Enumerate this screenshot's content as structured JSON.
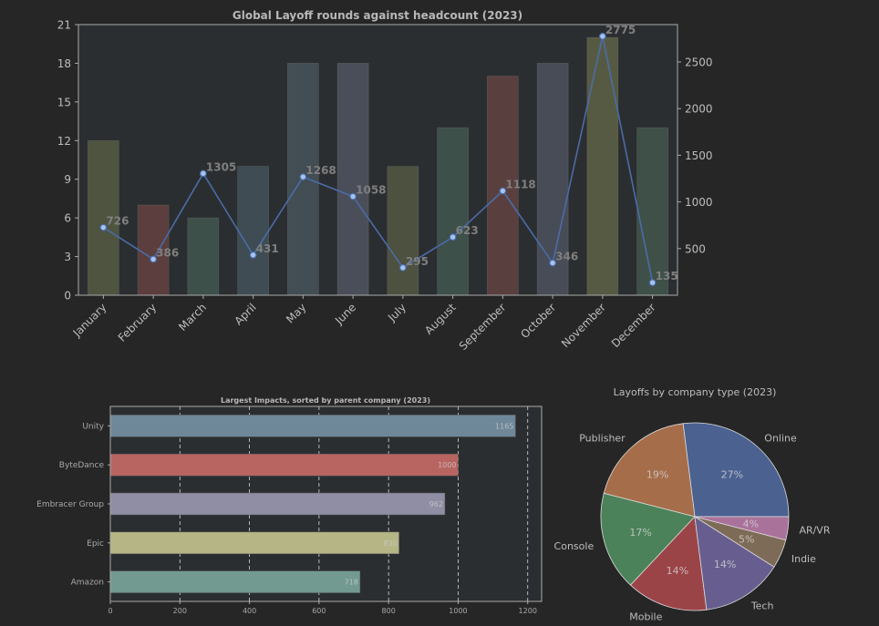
{
  "colors": {
    "background": "#262626",
    "axes_bg": "#2b2e30",
    "frame": "#aaaaaa",
    "line": "#4a6ca8",
    "marker_face": "#a6c3ef",
    "point_label": "#7f7f7f"
  },
  "chart_data": [
    {
      "type": "bar",
      "title": "Global Layoff rounds against headcount (2023)",
      "categories": [
        "January",
        "February",
        "March",
        "April",
        "May",
        "June",
        "July",
        "August",
        "September",
        "October",
        "November",
        "December"
      ],
      "series": [
        {
          "name": "Layoff rounds",
          "axis": "left",
          "type": "bar",
          "values": [
            12,
            7,
            6,
            10,
            18,
            18,
            10,
            13,
            17,
            18,
            20,
            13
          ],
          "colors": [
            "#4e5440",
            "#5b3e3d",
            "#3e504a",
            "#3f4c54",
            "#434d54",
            "#4a4e58",
            "#4d5140",
            "#3d5049",
            "#5a3f3f",
            "#474c57",
            "#575a43",
            "#3e5048"
          ]
        },
        {
          "name": "Headcount",
          "axis": "right",
          "type": "line",
          "values": [
            726,
            386,
            1305,
            431,
            1268,
            1058,
            295,
            623,
            1118,
            346,
            2775,
            135
          ]
        }
      ],
      "left_axis": {
        "ylim": [
          0,
          21
        ],
        "ticks": [
          0,
          3,
          6,
          9,
          12,
          15,
          18,
          21
        ]
      },
      "right_axis": {
        "ylim": [
          0,
          2900
        ],
        "ticks": [
          500,
          1000,
          1500,
          2000,
          2500
        ]
      }
    },
    {
      "type": "bar",
      "orientation": "horizontal",
      "title": "Largest Impacts, sorted by parent company (2023)",
      "categories": [
        "Unity",
        "ByteDance",
        "Embracer Group",
        "Epic",
        "Amazon"
      ],
      "values": [
        1165,
        1000,
        962,
        830,
        718
      ],
      "colors": [
        "#6f8899",
        "#b86562",
        "#908ea5",
        "#b5b585",
        "#729a90"
      ],
      "xlim": [
        0,
        1240
      ],
      "xticks": [
        0,
        200,
        400,
        600,
        800,
        1000,
        1200
      ],
      "grid": true
    },
    {
      "type": "pie",
      "title": "Layoffs by company type (2023)",
      "labels": [
        "Online",
        "Publisher",
        "Console",
        "Mobile",
        "Tech",
        "Indie",
        "AR/VR"
      ],
      "values": [
        27,
        19,
        17,
        14,
        14,
        5,
        4
      ],
      "pct_labels": [
        "27%",
        "19%",
        "17%",
        "14%",
        "14%",
        "5%",
        "4%"
      ],
      "colors": [
        "#4b6190",
        "#a56d49",
        "#4c8259",
        "#9b4448",
        "#675e8f",
        "#7e6b57",
        "#a9729b"
      ]
    }
  ]
}
